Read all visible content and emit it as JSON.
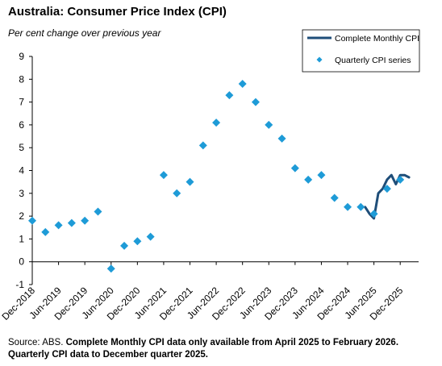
{
  "title": "Australia: Consumer Price Index (CPI)",
  "subtitle": "Per cent change over previous year",
  "footnote": {
    "source": "Source: ABS.",
    "note": "Complete Monthly CPI data only available from April 2025 to February 2026. Quarterly CPI data to December quarter 2025."
  },
  "colors": {
    "line": "#1f4e79",
    "marker": "#1e9bd7",
    "axis": "#000000"
  },
  "chart_data": {
    "type": "line",
    "ylim": [
      -1,
      9
    ],
    "yticks": [
      -1,
      0,
      1,
      2,
      3,
      4,
      5,
      6,
      7,
      8,
      9
    ],
    "xlim": [
      0,
      29.4
    ],
    "xticks": [
      {
        "i": 0,
        "label": "Dec-2018"
      },
      {
        "i": 2,
        "label": "Jun-2019"
      },
      {
        "i": 4,
        "label": "Dec-2019"
      },
      {
        "i": 6,
        "label": "Jun-2020"
      },
      {
        "i": 8,
        "label": "Dec-2020"
      },
      {
        "i": 10,
        "label": "Jun-2021"
      },
      {
        "i": 12,
        "label": "Dec-2021"
      },
      {
        "i": 14,
        "label": "Jun-2022"
      },
      {
        "i": 16,
        "label": "Dec-2022"
      },
      {
        "i": 18,
        "label": "Jun-2023"
      },
      {
        "i": 20,
        "label": "Dec-2023"
      },
      {
        "i": 22,
        "label": "Jun-2024"
      },
      {
        "i": 24,
        "label": "Dec-2024"
      },
      {
        "i": 26,
        "label": "Jun-2025"
      },
      {
        "i": 28,
        "label": "Dec-2025"
      }
    ],
    "series": [
      {
        "name": "Complete Monthly CPI",
        "kind": "line",
        "x": [
          25.33,
          25.67,
          26.0,
          26.33,
          26.67,
          27.0,
          27.33,
          27.67,
          28.0,
          28.33,
          28.67
        ],
        "values": [
          2.4,
          2.1,
          1.9,
          3.0,
          3.2,
          3.6,
          3.8,
          3.4,
          3.8,
          3.8,
          3.7
        ]
      },
      {
        "name": "Quarterly CPI series",
        "kind": "scatter",
        "x": [
          0,
          1,
          2,
          3,
          4,
          5,
          6,
          7,
          8,
          9,
          10,
          11,
          12,
          13,
          14,
          15,
          16,
          17,
          18,
          19,
          20,
          21,
          22,
          23,
          24,
          25,
          26,
          27,
          28
        ],
        "values": [
          1.8,
          1.3,
          1.6,
          1.7,
          1.8,
          2.2,
          -0.3,
          0.7,
          0.9,
          1.1,
          3.8,
          3.0,
          3.5,
          5.1,
          6.1,
          7.3,
          7.8,
          7.0,
          6.0,
          5.4,
          4.1,
          3.6,
          3.8,
          2.8,
          2.4,
          2.4,
          2.1,
          3.2,
          3.6
        ]
      }
    ],
    "legend": {
      "position": "top-right"
    }
  }
}
